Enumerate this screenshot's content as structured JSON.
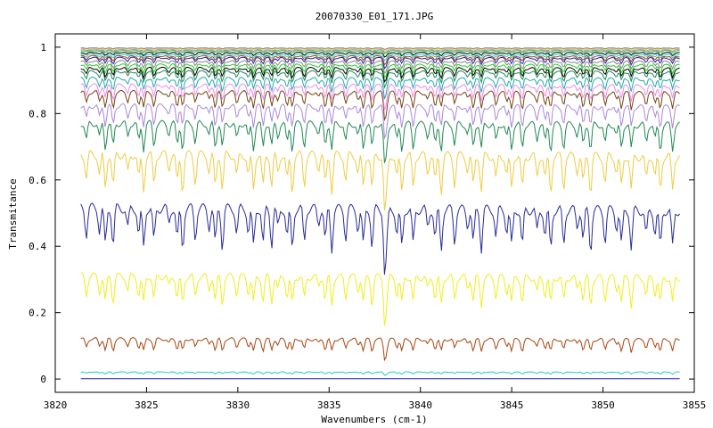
{
  "chart_data": {
    "type": "line",
    "title": "20070330_E01_171.JPG",
    "xlabel": "Wavenumbers (cm-1)",
    "ylabel": "Transmitance",
    "xlim": [
      3820,
      3855
    ],
    "ylim": [
      -0.04,
      1.04
    ],
    "xticks": [
      3820,
      3825,
      3830,
      3835,
      3840,
      3845,
      3850,
      3855
    ],
    "xtick_labels": [
      "3820",
      "3825",
      "3830",
      "3835",
      "3840",
      "3845",
      "3850",
      "3855"
    ],
    "yticks": [
      0,
      0.2,
      0.4,
      0.6,
      0.8,
      1
    ],
    "ytick_labels": [
      "0",
      "0.2",
      "0.4",
      "0.6",
      "0.8",
      "1"
    ],
    "x_range": [
      3821.4,
      3854.2
    ],
    "grid": false,
    "legend": "none",
    "series": [
      {
        "color": "#2222aa",
        "base": 0.001,
        "depth": 0.0
      },
      {
        "color": "#22cccc",
        "base": 0.022,
        "depth": 0.01
      },
      {
        "color": "#aa4411",
        "base": 0.125,
        "depth": 0.06
      },
      {
        "color": "#eeee22",
        "base": 0.32,
        "depth": 0.14
      },
      {
        "color": "#2a2a99",
        "base": 0.53,
        "depth": 0.2
      },
      {
        "color": "#eecc44",
        "base": 0.69,
        "depth": 0.18
      },
      {
        "color": "#228855",
        "base": 0.78,
        "depth": 0.13
      },
      {
        "color": "#aa88dd",
        "base": 0.83,
        "depth": 0.1
      },
      {
        "color": "#774411",
        "base": 0.87,
        "depth": 0.08
      },
      {
        "color": "#ee88ee",
        "base": 0.89,
        "depth": 0.07
      },
      {
        "color": "#22aaaa",
        "base": 0.91,
        "depth": 0.06
      },
      {
        "color": "#228855",
        "base": 0.93,
        "depth": 0.05
      },
      {
        "color": "#000000",
        "base": 0.94,
        "depth": 0.045
      },
      {
        "color": "#22cc22",
        "base": 0.95,
        "depth": 0.04
      },
      {
        "color": "#888888",
        "base": 0.96,
        "depth": 0.035
      },
      {
        "color": "#2222aa",
        "base": 0.97,
        "depth": 0.03
      },
      {
        "color": "#aa4411",
        "base": 0.975,
        "depth": 0.025
      },
      {
        "color": "#22cccc",
        "base": 0.98,
        "depth": 0.02
      },
      {
        "color": "#000000",
        "base": 0.985,
        "depth": 0.015
      },
      {
        "color": "#22cc22",
        "base": 0.99,
        "depth": 0.01
      },
      {
        "color": "#aa88dd",
        "base": 0.993,
        "depth": 0.008
      },
      {
        "color": "#eecc44",
        "base": 0.996,
        "depth": 0.006
      },
      {
        "color": "#888888",
        "base": 0.998,
        "depth": 0.004
      }
    ]
  }
}
